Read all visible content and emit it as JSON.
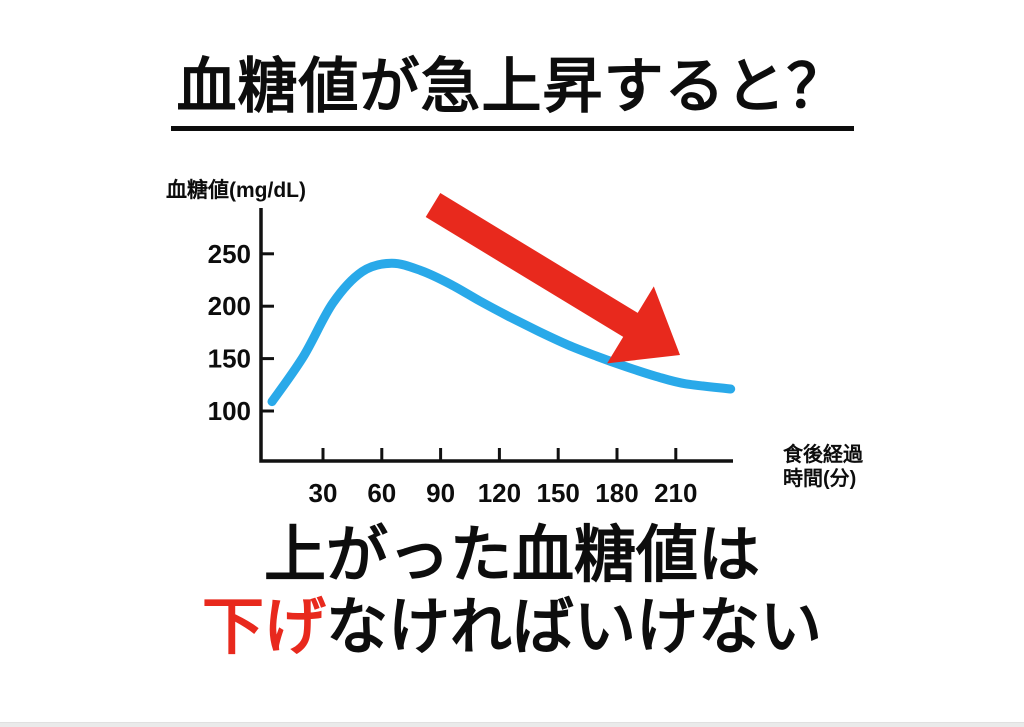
{
  "slide": {
    "title": "血糖値が急上昇すると？",
    "caption_line1": "上がった血糖値は",
    "caption_line2_red": "下げ",
    "caption_line2_rest": "なければいけない"
  },
  "colors": {
    "curve_blue": "#29A9E9",
    "arrow_red": "#E8291D",
    "axis_black": "#111111",
    "text_black": "#0D0D0D"
  },
  "chart_data": {
    "type": "line",
    "title": "",
    "ylabel": "血糖値(mg/dL)",
    "xlabel_line1": "食後経過",
    "xlabel_line2": "時間(分)",
    "x_ticks": [
      30,
      60,
      90,
      120,
      150,
      180,
      210
    ],
    "y_ticks": [
      100,
      150,
      200,
      250
    ],
    "xlim": [
      0,
      240
    ],
    "ylim": [
      50,
      270
    ],
    "grid": false,
    "legend": "none",
    "x": [
      4,
      20,
      35,
      50,
      65,
      80,
      95,
      110,
      125,
      140,
      155,
      170,
      185,
      200,
      215,
      238
    ],
    "series": [
      {
        "name": "血糖値",
        "values": [
          109,
          152,
          203,
          233,
          241,
          234,
          221,
          205,
          190,
          176,
          163,
          152,
          142,
          133,
          126,
          121
        ]
      }
    ],
    "annotations": [
      {
        "type": "arrow",
        "meaning": "blood sugar must come down",
        "direction": "down-right"
      }
    ]
  }
}
